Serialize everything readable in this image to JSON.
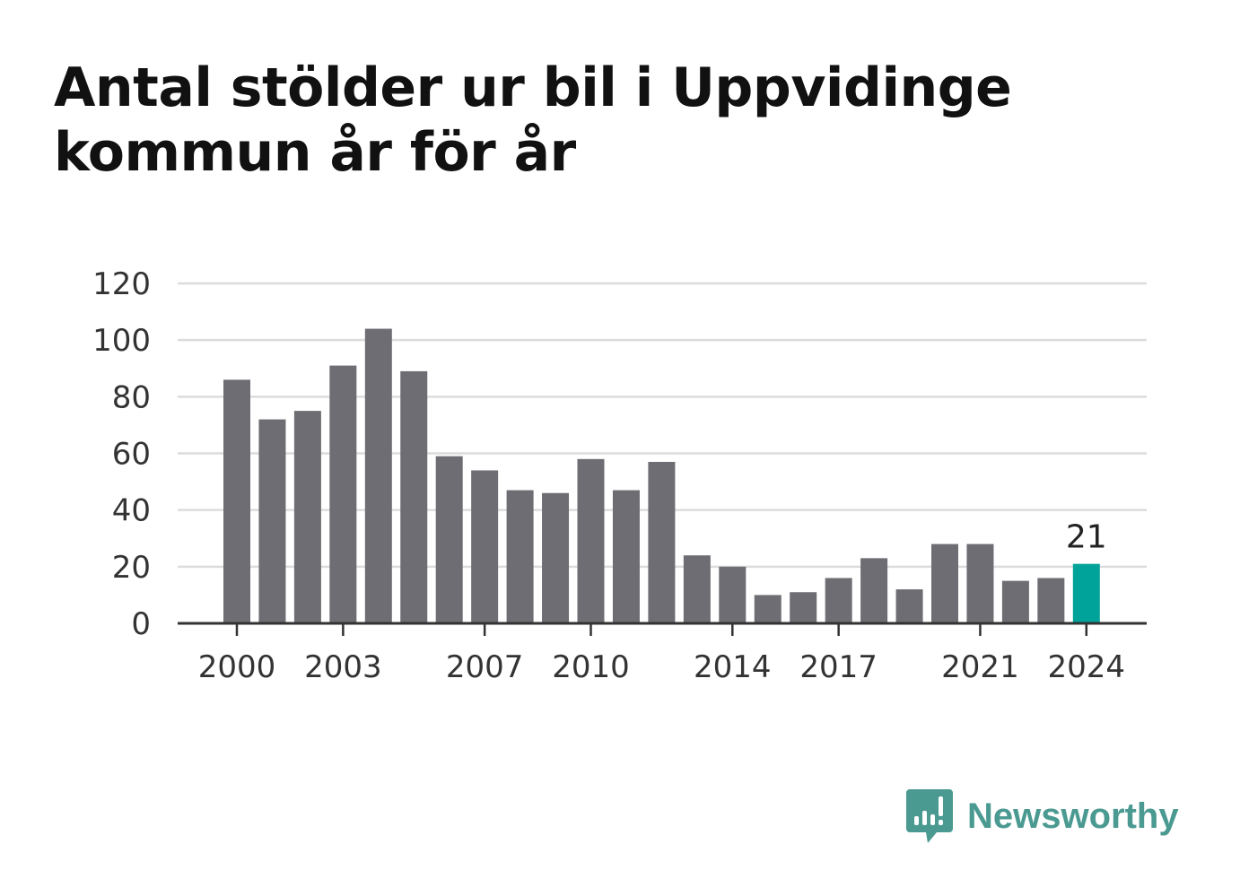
{
  "chart_data": {
    "type": "bar",
    "title": "Antal stölder ur bil i Uppvidinge kommun år för år",
    "xlabel": "",
    "ylabel": "",
    "categories": [
      "2000",
      "2001",
      "2002",
      "2003",
      "2004",
      "2005",
      "2006",
      "2007",
      "2008",
      "2009",
      "2010",
      "2011",
      "2012",
      "2013",
      "2014",
      "2015",
      "2016",
      "2017",
      "2018",
      "2019",
      "2020",
      "2021",
      "2022",
      "2023",
      "2024"
    ],
    "values": [
      86,
      72,
      75,
      91,
      104,
      89,
      59,
      54,
      47,
      46,
      58,
      47,
      57,
      24,
      20,
      10,
      11,
      16,
      23,
      12,
      28,
      28,
      15,
      16,
      21
    ],
    "ylim": [
      0,
      120
    ],
    "yticks": [
      "0",
      "20",
      "40",
      "60",
      "80",
      "100",
      "120"
    ],
    "xticks": [
      "2000",
      "2003",
      "2007",
      "2010",
      "2014",
      "2017",
      "2021",
      "2024"
    ],
    "highlight": {
      "category": "2024",
      "label": "21"
    },
    "grid": true,
    "legend": "none",
    "colors": {
      "bar": "#6e6d73",
      "highlight": "#00a39a"
    }
  },
  "branding": {
    "name": "Newsworthy",
    "logo_icon": "bar-chart-speech-bubble-icon",
    "color": "#4a9a92"
  }
}
